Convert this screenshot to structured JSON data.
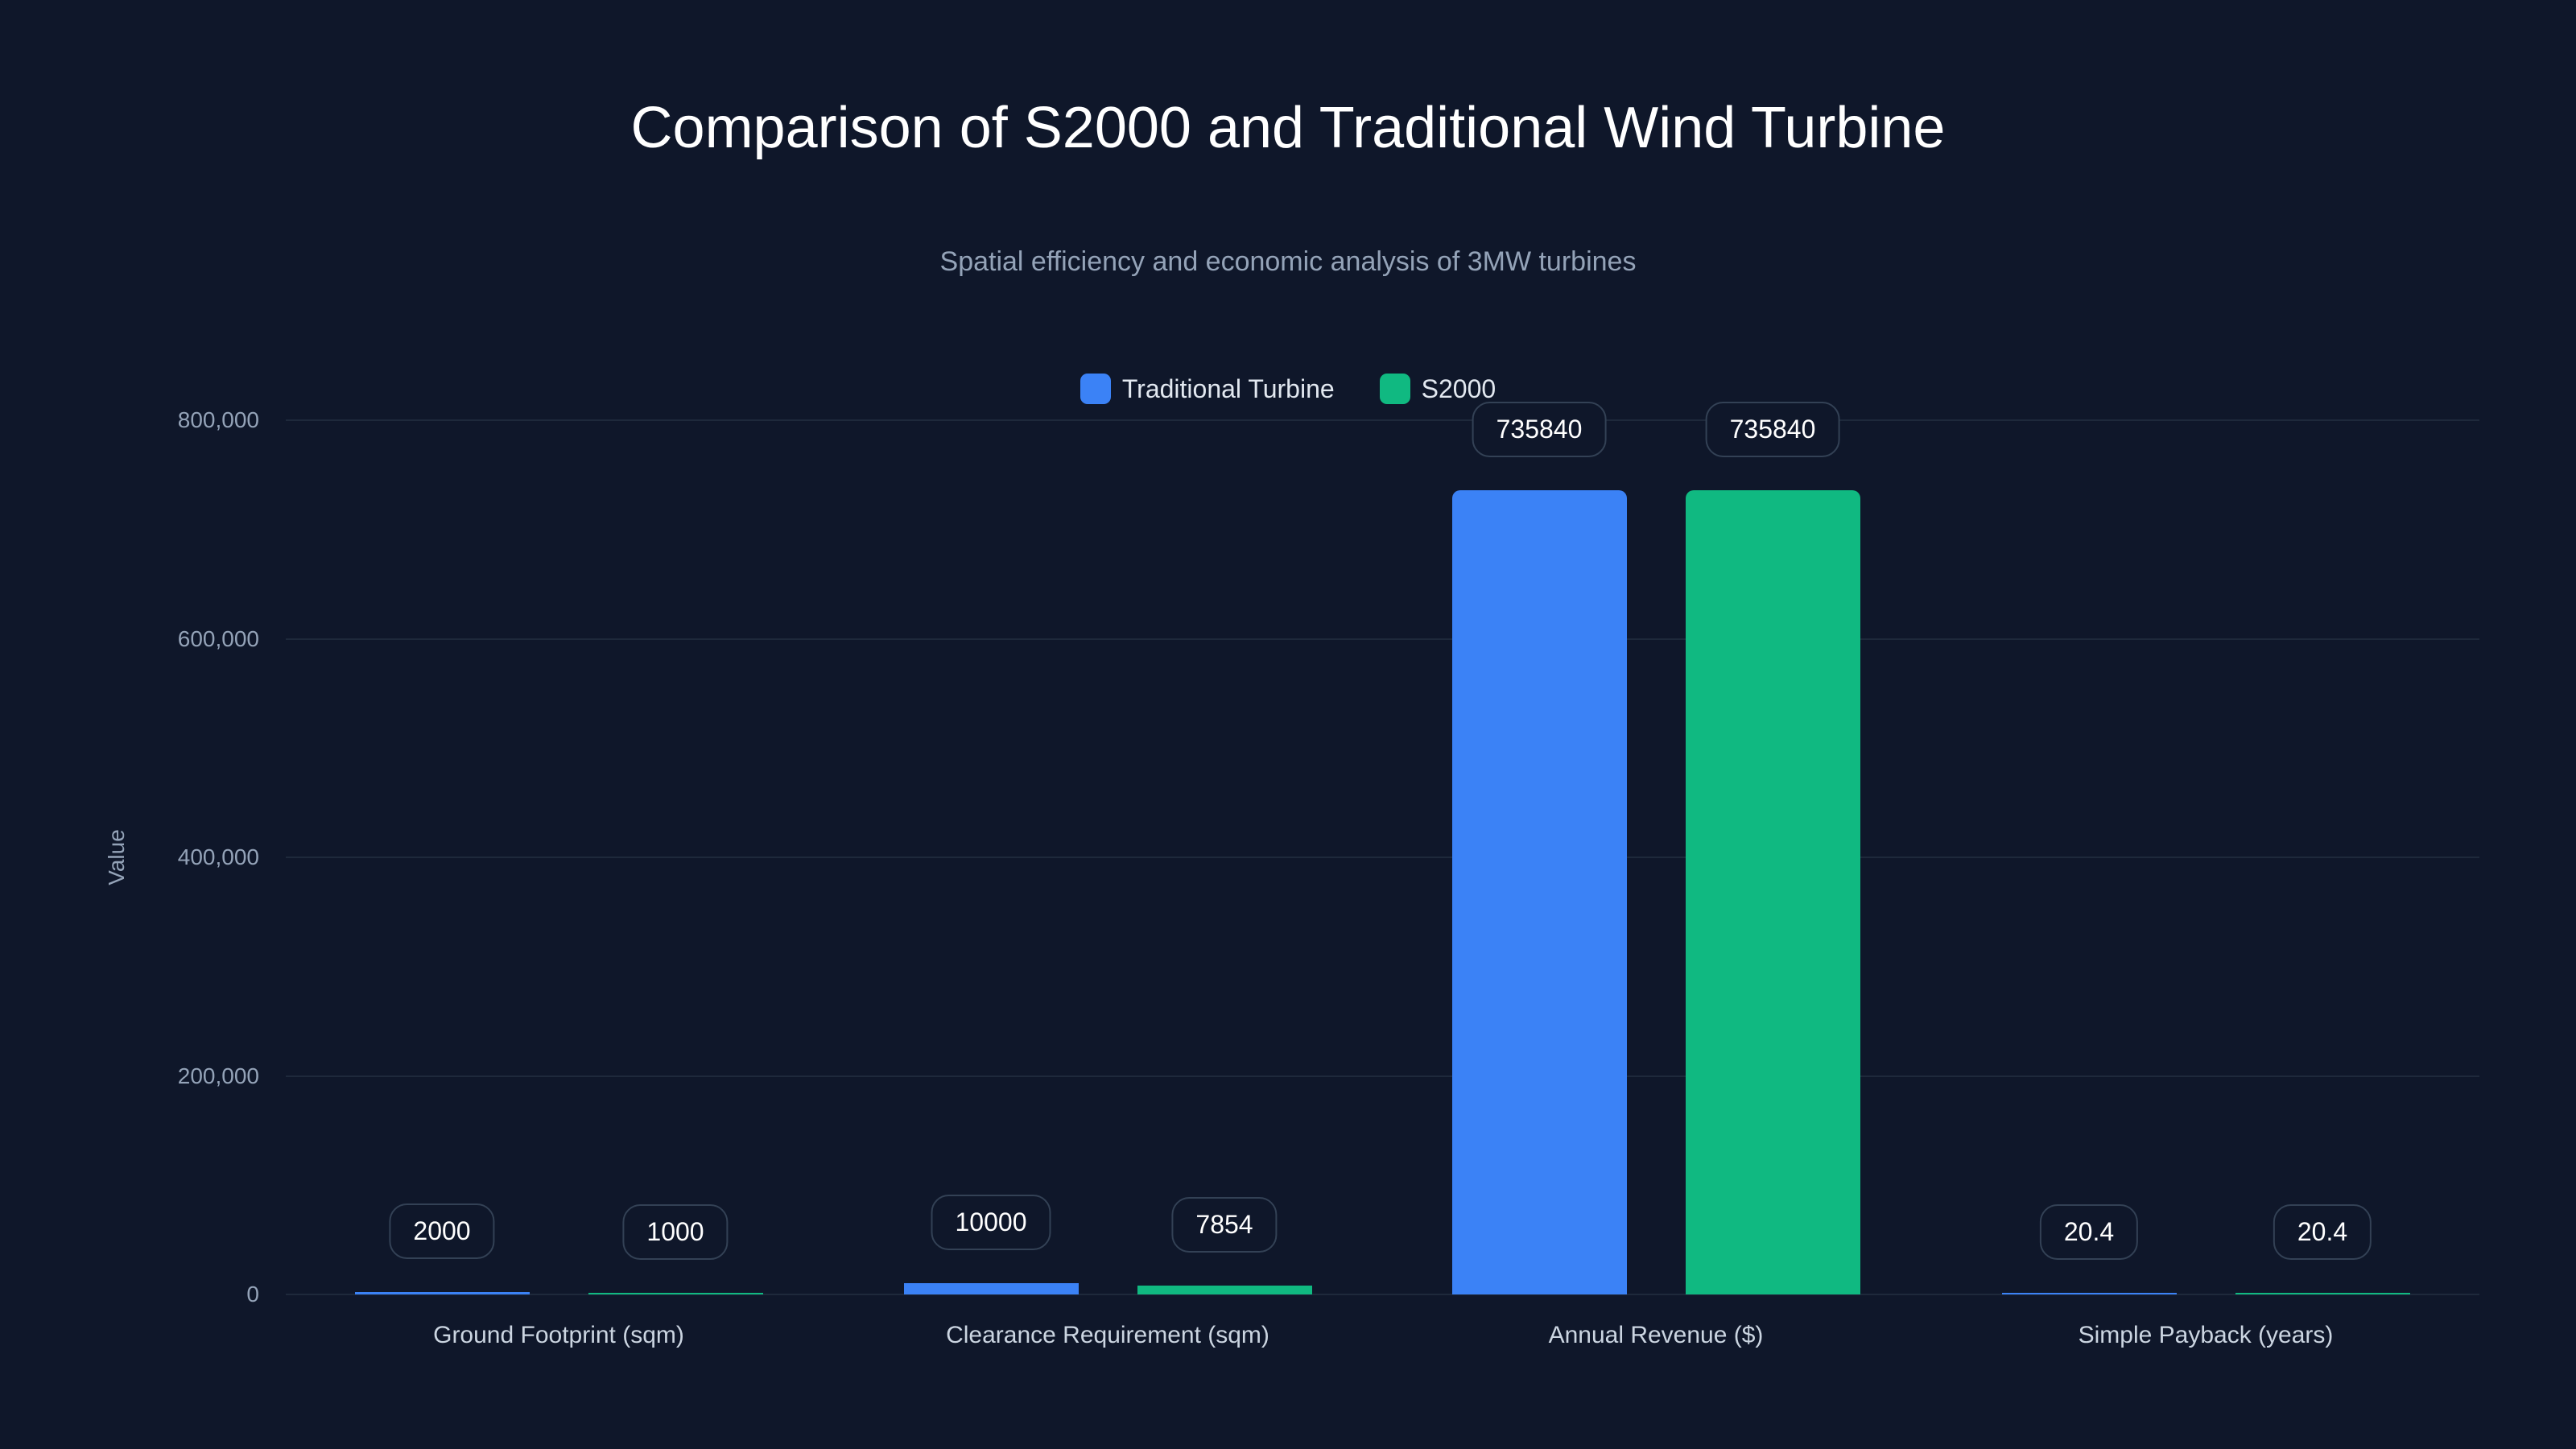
{
  "chart_data": {
    "type": "bar",
    "title": "Comparison of S2000 and Traditional Wind Turbine",
    "subtitle": "Spatial efficiency and economic analysis of 3MW turbines",
    "xlabel": "",
    "ylabel": "Value",
    "ylim": [
      0,
      800000
    ],
    "yticks": [
      "0",
      "200,000",
      "400,000",
      "600,000",
      "800,000"
    ],
    "categories": [
      "Ground Footprint (sqm)",
      "Clearance Requirement (sqm)",
      "Annual Revenue ($)",
      "Simple Payback (years)"
    ],
    "series": [
      {
        "name": "Traditional Turbine",
        "color": "#3b82f6",
        "values": [
          2000,
          10000,
          735840,
          20.4
        ]
      },
      {
        "name": "S2000",
        "color": "#10b981",
        "values": [
          1000,
          7854,
          735840,
          20.4
        ]
      }
    ],
    "legend_position": "top",
    "grid": true
  }
}
